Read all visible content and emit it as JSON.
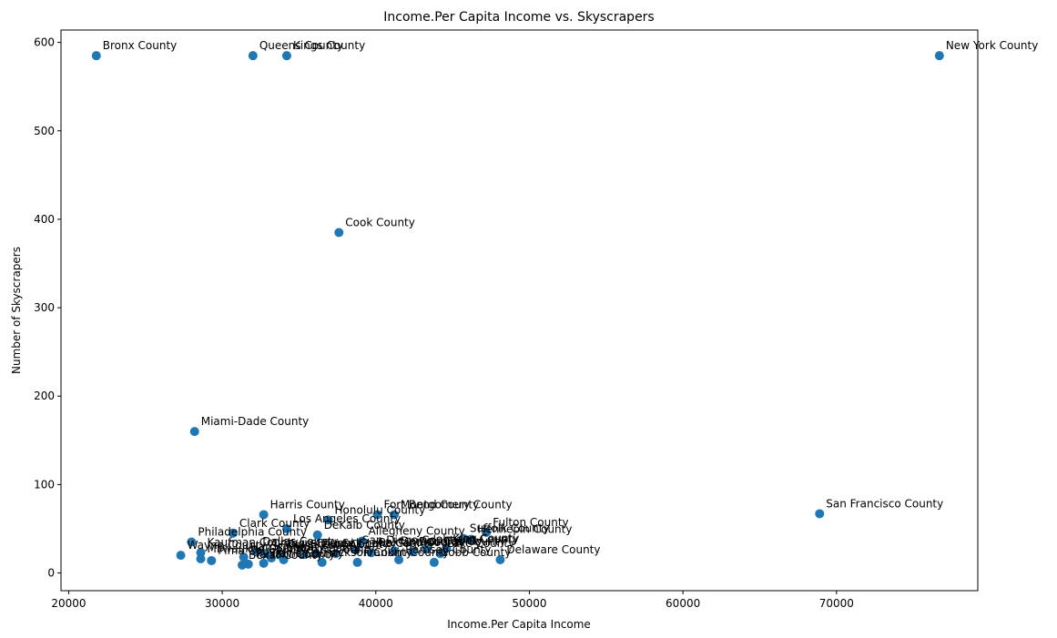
{
  "chart_data": {
    "type": "scatter",
    "title": "Income.Per Capita Income vs. Skyscrapers",
    "xlabel": "Income.Per Capita Income",
    "ylabel": "Number of Skyscrapers",
    "xlim": [
      19500,
      79200
    ],
    "ylim": [
      -20,
      614
    ],
    "xticks": [
      20000,
      30000,
      40000,
      50000,
      60000,
      70000
    ],
    "yticks": [
      0,
      100,
      200,
      300,
      400,
      500,
      600
    ],
    "grid": false,
    "marker_color": "#1f77b4",
    "points": [
      {
        "label": "Bronx County",
        "x": 21800,
        "y": 585
      },
      {
        "label": "Queens County",
        "x": 32000,
        "y": 585
      },
      {
        "label": "Kings County",
        "x": 34200,
        "y": 585
      },
      {
        "label": "New York County",
        "x": 76700,
        "y": 585
      },
      {
        "label": "Cook County",
        "x": 37600,
        "y": 385
      },
      {
        "label": "Miami-Dade County",
        "x": 28200,
        "y": 160
      },
      {
        "label": "San Francisco County",
        "x": 68900,
        "y": 67
      },
      {
        "label": "Harris County",
        "x": 32700,
        "y": 66
      },
      {
        "label": "Fort Bend County",
        "x": 40100,
        "y": 66
      },
      {
        "label": "Montgomery County",
        "x": 41200,
        "y": 66
      },
      {
        "label": "Honolulu County",
        "x": 36900,
        "y": 60
      },
      {
        "label": "Los Angeles County",
        "x": 34200,
        "y": 50
      },
      {
        "label": "Clark County",
        "x": 30700,
        "y": 45
      },
      {
        "label": "DeKalb County",
        "x": 36200,
        "y": 43
      },
      {
        "label": "Fulton County",
        "x": 47200,
        "y": 46
      },
      {
        "label": "Suffolk County",
        "x": 45700,
        "y": 39
      },
      {
        "label": "Hennepin County",
        "x": 46200,
        "y": 38
      },
      {
        "label": "Philadelphia County",
        "x": 28000,
        "y": 35
      },
      {
        "label": "Allegheny County",
        "x": 39100,
        "y": 36
      },
      {
        "label": "Wayne County",
        "x": 27300,
        "y": 20
      },
      {
        "label": "Kaufman County",
        "x": 28600,
        "y": 23
      },
      {
        "label": "Milwaukee County",
        "x": 28600,
        "y": 16
      },
      {
        "label": "Pima County",
        "x": 29300,
        "y": 14
      },
      {
        "label": "Dallas County",
        "x": 32200,
        "y": 24
      },
      {
        "label": "Harris County",
        "x": 31400,
        "y": 18
      },
      {
        "label": "Orange County",
        "x": 32800,
        "y": 22
      },
      {
        "label": "Tarrant County",
        "x": 31700,
        "y": 10
      },
      {
        "label": "Bexar County",
        "x": 31300,
        "y": 9
      },
      {
        "label": "Travis County",
        "x": 32700,
        "y": 11
      },
      {
        "label": "Denton County",
        "x": 33200,
        "y": 17
      },
      {
        "label": "Collin County",
        "x": 33800,
        "y": 20
      },
      {
        "label": "Orleans County",
        "x": 34000,
        "y": 15
      },
      {
        "label": "Shelby County",
        "x": 35300,
        "y": 21
      },
      {
        "label": "Duval County",
        "x": 36100,
        "y": 22
      },
      {
        "label": "Jackson County",
        "x": 36500,
        "y": 12
      },
      {
        "label": "Salt Lake County",
        "x": 37400,
        "y": 22
      },
      {
        "label": "San Diego County",
        "x": 38700,
        "y": 26
      },
      {
        "label": "Franklin County",
        "x": 38800,
        "y": 12
      },
      {
        "label": "Oakland County",
        "x": 39700,
        "y": 23
      },
      {
        "label": "Denver County",
        "x": 41200,
        "y": 25
      },
      {
        "label": "Ramsey County",
        "x": 41500,
        "y": 15
      },
      {
        "label": "Douglas County",
        "x": 42400,
        "y": 24
      },
      {
        "label": "Johnson County",
        "x": 43300,
        "y": 27
      },
      {
        "label": "Cobb County",
        "x": 43800,
        "y": 12
      },
      {
        "label": "Lake County",
        "x": 44200,
        "y": 22
      },
      {
        "label": "King County",
        "x": 44600,
        "y": 28
      },
      {
        "label": "Delaware County",
        "x": 48100,
        "y": 15
      }
    ]
  }
}
